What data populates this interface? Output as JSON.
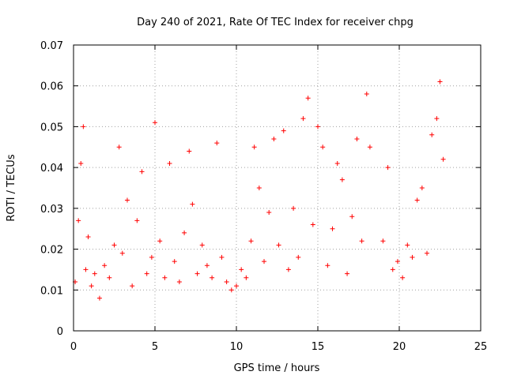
{
  "chart_data": {
    "type": "scatter",
    "title": "Day 240 of 2021, Rate Of TEC Index for receiver chpg",
    "xlabel": "GPS time / hours",
    "ylabel": "ROTI / TECUs",
    "xlim": [
      0,
      25
    ],
    "ylim": [
      0,
      0.07
    ],
    "x_ticks": [
      0,
      5,
      10,
      15,
      20,
      25
    ],
    "x_tick_labels": [
      "0",
      "5",
      "10",
      "15",
      "20",
      "25"
    ],
    "y_ticks": [
      0,
      0.01,
      0.02,
      0.03,
      0.04,
      0.05,
      0.06,
      0.07
    ],
    "y_tick_labels": [
      "0",
      "0.01",
      "0.02",
      "0.03",
      "0.04",
      "0.05",
      "0.06",
      "0.07"
    ],
    "grid": true,
    "legend": "none",
    "marker": "plus",
    "color": "#ff0000",
    "data_gaps_hours": [
      [
        18.4,
        18.9
      ],
      [
        22.8,
        24.0
      ]
    ],
    "series": [
      {
        "x": [
          0.1,
          0.3,
          0.45,
          0.6,
          0.75,
          0.9,
          1.1,
          1.3,
          1.6,
          1.9,
          2.2,
          2.5,
          2.8,
          3.0,
          3.3,
          3.6,
          3.9,
          4.2,
          4.5,
          4.8,
          5.0,
          5.3,
          5.6,
          5.9,
          6.2,
          6.5,
          6.8,
          7.1,
          7.3,
          7.6,
          7.9,
          8.2,
          8.5,
          8.8,
          9.1,
          9.4,
          9.7,
          10.0,
          10.3,
          10.6,
          10.9,
          11.1,
          11.4,
          11.7,
          12.0,
          12.3,
          12.6,
          12.9,
          13.2,
          13.5,
          13.8,
          14.1,
          14.4,
          14.7,
          15.0,
          15.3,
          15.6,
          15.9,
          16.2,
          16.5,
          16.8,
          17.1,
          17.4,
          17.7,
          18.0,
          18.2,
          19.0,
          19.3,
          19.6,
          19.9,
          20.2,
          20.5,
          20.8,
          21.1,
          21.4,
          21.7,
          22.0,
          22.3,
          22.5,
          22.7
        ],
        "y": [
          0.012,
          0.027,
          0.041,
          0.05,
          0.015,
          0.023,
          0.011,
          0.014,
          0.008,
          0.016,
          0.013,
          0.021,
          0.045,
          0.019,
          0.032,
          0.011,
          0.027,
          0.039,
          0.014,
          0.018,
          0.051,
          0.022,
          0.013,
          0.041,
          0.017,
          0.012,
          0.024,
          0.044,
          0.031,
          0.014,
          0.021,
          0.016,
          0.013,
          0.046,
          0.018,
          0.012,
          0.01,
          0.011,
          0.015,
          0.013,
          0.022,
          0.045,
          0.035,
          0.017,
          0.029,
          0.047,
          0.021,
          0.049,
          0.015,
          0.03,
          0.018,
          0.052,
          0.057,
          0.026,
          0.05,
          0.045,
          0.016,
          0.025,
          0.041,
          0.037,
          0.014,
          0.028,
          0.047,
          0.022,
          0.058,
          0.045,
          0.022,
          0.04,
          0.015,
          0.017,
          0.013,
          0.021,
          0.018,
          0.032,
          0.035,
          0.019,
          0.048,
          0.052,
          0.061,
          0.042
        ]
      }
    ]
  }
}
